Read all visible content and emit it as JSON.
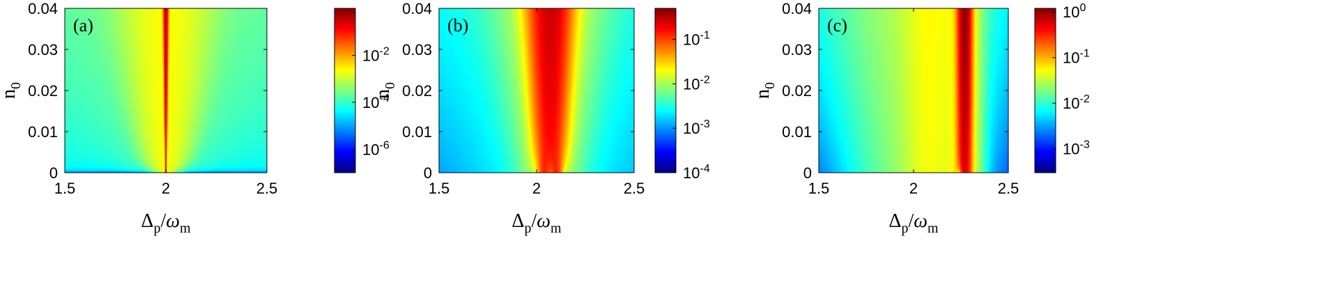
{
  "chart_data": [
    {
      "type": "heatmap",
      "panel_label": "(a)",
      "xlabel": "Δp/ωm",
      "ylabel": "n0",
      "xlim": [
        1.5,
        2.5
      ],
      "ylim": [
        0,
        0.04
      ],
      "x_ticks": [
        "1.5",
        "2",
        "2.5"
      ],
      "y_ticks": [
        "0",
        "0.01",
        "0.02",
        "0.03",
        "0.04"
      ],
      "colorscale": "jet",
      "colorbar": {
        "scale": "log",
        "range": [
          1e-07,
          1
        ],
        "tick_labels": [
          "10-6",
          "10-4",
          "10-2"
        ]
      },
      "features": {
        "peak_x": 2.0,
        "peak_width_narrow": 0.004,
        "peak_width_broad": 0.08,
        "background": 8e-05,
        "dip_near_zero": true
      }
    },
    {
      "type": "heatmap",
      "panel_label": "(b)",
      "xlabel": "Δp/ωm",
      "ylabel": "n0",
      "xlim": [
        1.5,
        2.5
      ],
      "ylim": [
        0,
        0.04
      ],
      "x_ticks": [
        "1.5",
        "2",
        "2.5"
      ],
      "y_ticks": [
        "0",
        "0.01",
        "0.02",
        "0.03",
        "0.04"
      ],
      "colorscale": "jet",
      "colorbar": {
        "scale": "log",
        "range": [
          0.0001,
          0.5
        ],
        "tick_labels": [
          "10-4",
          "10-3",
          "10-2",
          "10-1"
        ]
      },
      "features": {
        "peak_x": 2.07,
        "split_peaks": [
          2.04,
          2.1
        ],
        "peak_width": 0.05,
        "background": 0.0015
      }
    },
    {
      "type": "heatmap",
      "panel_label": "(c)",
      "xlabel": "Δp/ωm",
      "ylabel": "n0",
      "xlim": [
        1.5,
        2.5
      ],
      "ylim": [
        0,
        0.04
      ],
      "x_ticks": [
        "1.5",
        "2",
        "2.5"
      ],
      "y_ticks": [
        "0",
        "0.01",
        "0.02",
        "0.03",
        "0.04"
      ],
      "colorscale": "jet",
      "colorbar": {
        "scale": "log",
        "range": [
          0.0003,
          1.2
        ],
        "tick_labels": [
          "10-3",
          "10-2",
          "10-1",
          "100"
        ]
      },
      "features": {
        "peak_x": 2.27,
        "peak_width": 0.02,
        "plateau_center": 2.0,
        "plateau_width": 0.22,
        "background": 0.004
      }
    }
  ]
}
